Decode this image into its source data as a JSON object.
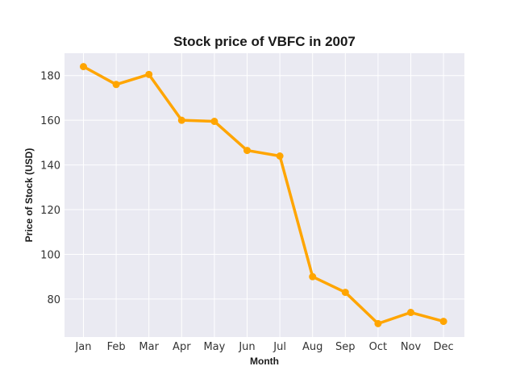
{
  "chart_data": {
    "type": "line",
    "title": "Stock price of VBFC in 2007",
    "xlabel": "Month",
    "ylabel": "Price of Stock (USD)",
    "categories": [
      "Jan",
      "Feb",
      "Mar",
      "Apr",
      "May",
      "Jun",
      "Jul",
      "Aug",
      "Sep",
      "Oct",
      "Nov",
      "Dec"
    ],
    "series": [
      {
        "values": [
          184,
          176,
          180.5,
          160,
          159.5,
          146.5,
          144,
          90,
          83,
          69,
          74,
          70
        ],
        "color": "#ffa500"
      }
    ],
    "yticks": [
      80,
      100,
      120,
      140,
      160,
      180
    ],
    "ylim": [
      63,
      190
    ],
    "grid": true,
    "background_color": "#eaeaf2",
    "grid_color": "#ffffff"
  }
}
